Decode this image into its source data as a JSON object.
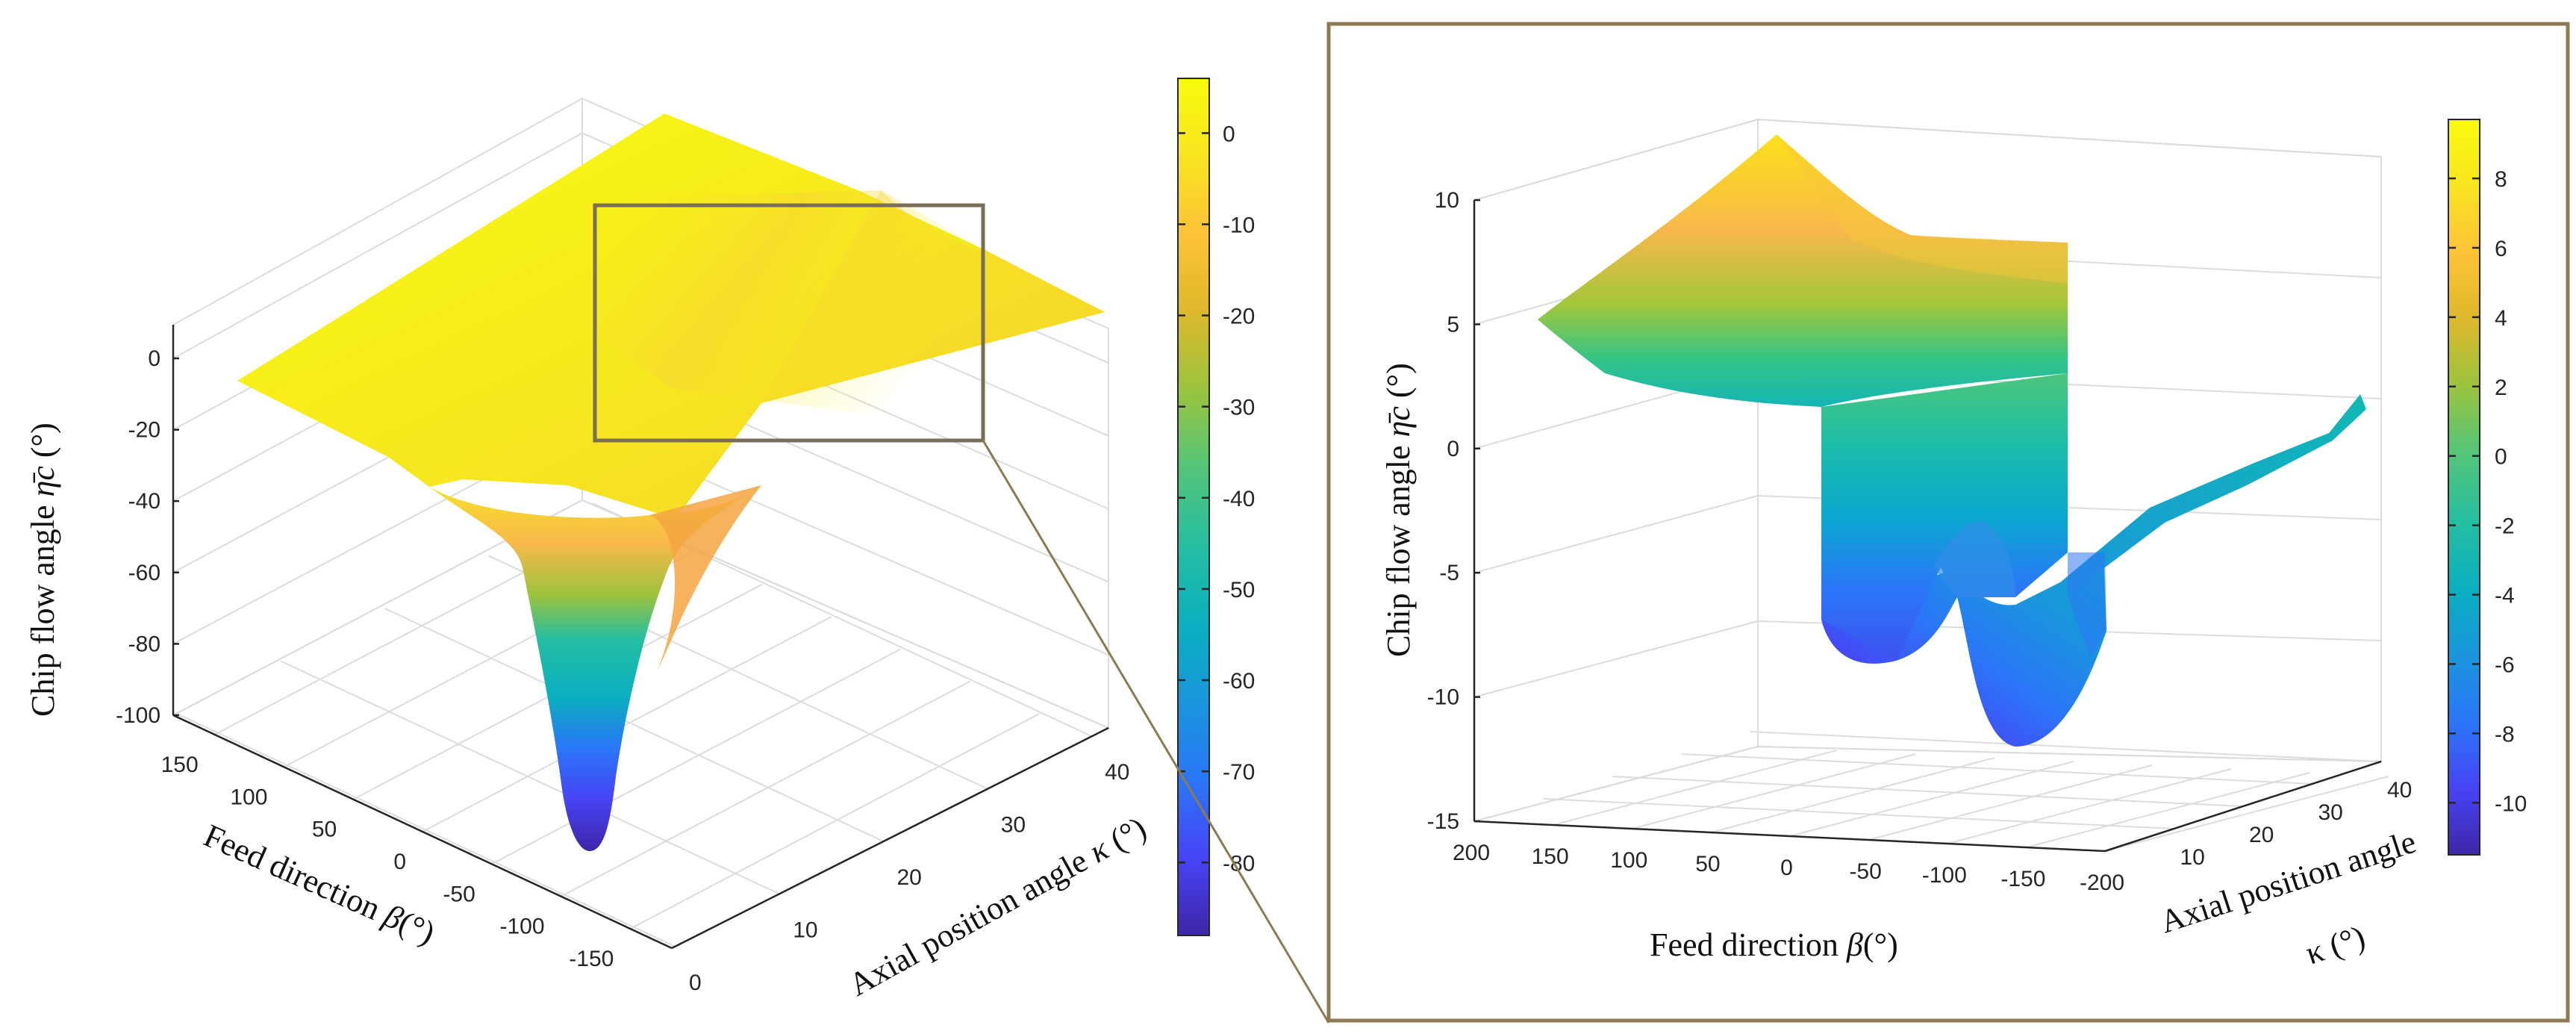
{
  "figure_description": "",
  "colors": {
    "parula_stops": [
      "#3e26a8",
      "#4743f5",
      "#2b76f8",
      "#1a95dd",
      "#0aafc0",
      "#24bea2",
      "#56c576",
      "#9dc33d",
      "#dfb82b",
      "#fec338",
      "#f8e51f",
      "#f9fb0e"
    ],
    "zoom_frame": "#8d7a52",
    "zoom_box": "#7a6e58",
    "connector": "#8d7a52"
  },
  "chart_data": [
    {
      "type": "surface",
      "panel": "overview",
      "zlabel_text": "Chip flow angle ",
      "zlabel_symbol": "η̄c",
      "zlabel_unit": " (°)",
      "xlabel_text": "Feed direction ",
      "xlabel_symbol": "β",
      "xlabel_unit": "(°)",
      "ylabel_text": "Axial position angle ",
      "ylabel_symbol": "κ",
      "ylabel_unit": " (°)",
      "x_ticks": [
        "150",
        "100",
        "50",
        "0",
        "-50",
        "-100",
        "-150"
      ],
      "y_ticks": [
        "0",
        "10",
        "20",
        "30",
        "40"
      ],
      "z_ticks": [
        "0",
        "-20",
        "-40",
        "-60",
        "-80",
        "-100"
      ],
      "xlim": [
        -180,
        180
      ],
      "ylim": [
        0,
        40
      ],
      "zlim": [
        -100,
        10
      ],
      "surface_min": -90,
      "surface_max": 5,
      "colorbar_ticks": [
        "0",
        "-10",
        "-20",
        "-30",
        "-40",
        "-50",
        "-60",
        "-70",
        "-80"
      ],
      "colorbar_range": [
        -88,
        6
      ]
    },
    {
      "type": "surface",
      "panel": "zoom",
      "zlabel_text": "Chip flow angle ",
      "zlabel_symbol": "η̄c",
      "zlabel_unit": " (°)",
      "xlabel_text": "Feed direction ",
      "xlabel_symbol": "β",
      "xlabel_unit": "(°)",
      "ylabel_line1": "Axial position angle",
      "ylabel_line2": "κ (°)",
      "x_ticks": [
        "200",
        "150",
        "100",
        "50",
        "0",
        "-50",
        "-100",
        "-150",
        "-200"
      ],
      "y_ticks": [
        "10",
        "20",
        "30",
        "40"
      ],
      "z_ticks": [
        "10",
        "5",
        "0",
        "-5",
        "-10",
        "-15"
      ],
      "xlim": [
        -200,
        200
      ],
      "ylim": [
        0,
        40
      ],
      "zlim": [
        -15,
        10
      ],
      "surface_min": -11.8,
      "surface_max": 9.8,
      "colorbar_ticks": [
        "8",
        "6",
        "4",
        "2",
        "0",
        "-2",
        "-4",
        "-6",
        "-8",
        "-10"
      ],
      "colorbar_range": [
        -11.5,
        9.7
      ]
    }
  ]
}
